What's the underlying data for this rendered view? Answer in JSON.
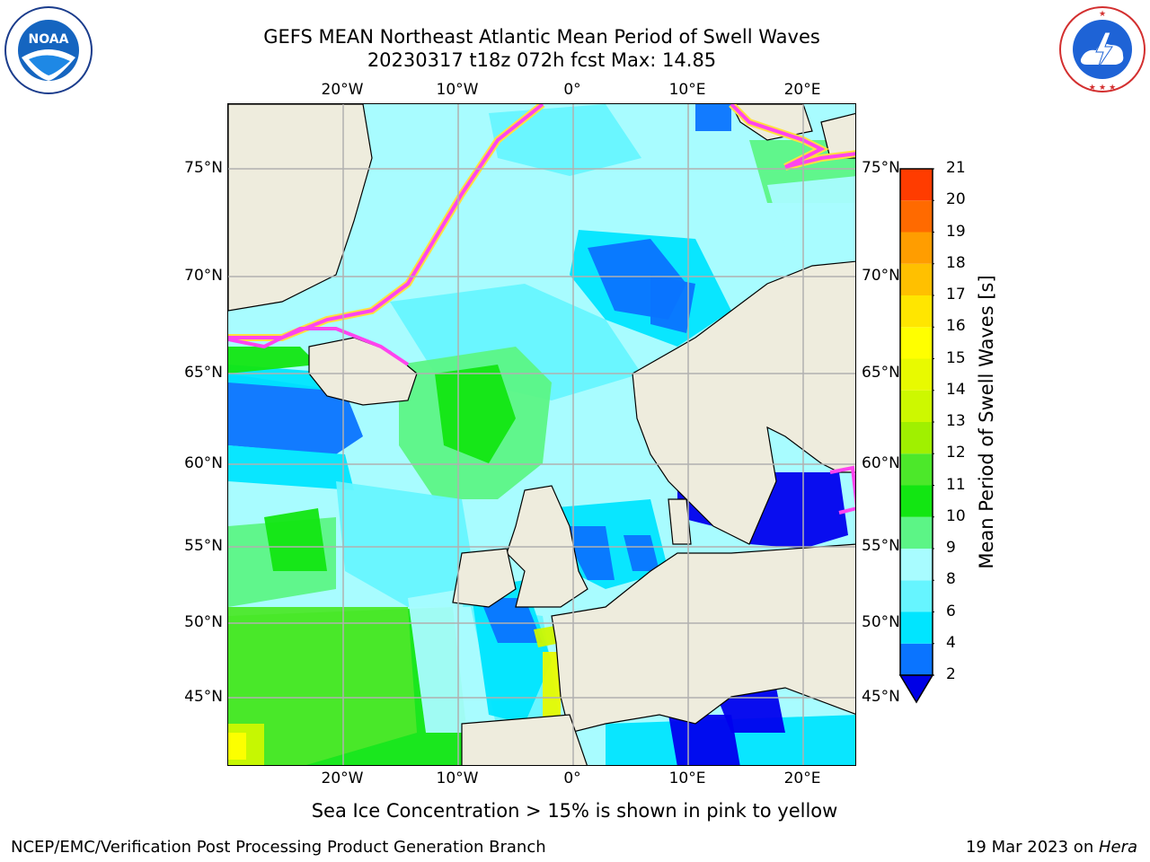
{
  "title": {
    "line1": "GEFS MEAN Northeast Atlantic Mean Period of Swell Waves",
    "line2": "20230317 t18z 072h fcst   Max: 14.85"
  },
  "logos": {
    "left": {
      "text": "NOAA",
      "ring_text": "NATIONAL OCEANIC AND ATMOSPHERIC ADMINISTRATION · U.S. DEPARTMENT OF COMMERCE"
    },
    "right": {
      "ring_text": "NATIONAL WEATHER SERVICE"
    }
  },
  "axes": {
    "lon_ticks": [
      "20°W",
      "10°W",
      "0°",
      "10°E",
      "20°E"
    ],
    "lat_ticks": [
      "75°N",
      "70°N",
      "65°N",
      "60°N",
      "55°N",
      "50°N",
      "45°N"
    ]
  },
  "colorbar": {
    "label": "Mean Period of Swell Waves [s]",
    "levels": [
      "2",
      "4",
      "6",
      "8",
      "9",
      "10",
      "11",
      "12",
      "13",
      "14",
      "15",
      "16",
      "17",
      "18",
      "19",
      "20",
      "21"
    ],
    "colors": [
      "#0a74ff",
      "#00e5ff",
      "#66f5ff",
      "#a8fcff",
      "#5cf586",
      "#12e612",
      "#4ce82a",
      "#a0f000",
      "#cdf800",
      "#e8fa00",
      "#ffff00",
      "#ffe600",
      "#ffc000",
      "#ff9d00",
      "#ff6a00",
      "#ff3c00",
      "#ff0000"
    ],
    "underflow_color": "#0000e6"
  },
  "colors": {
    "land": "#eeecdd",
    "ice_pink": "#ff44ee",
    "ice_yellow": "#ffdf40",
    "grid": "#b0b0b0",
    "deep_blue": "#0000ff"
  },
  "caption": "Sea Ice Concentration > 15% is shown in pink to yellow",
  "footer": {
    "left": "NCEP/EMC/Verification Post Processing Product Generation Branch",
    "right_date": "19 Mar 2023 on ",
    "right_host": "Hera"
  }
}
